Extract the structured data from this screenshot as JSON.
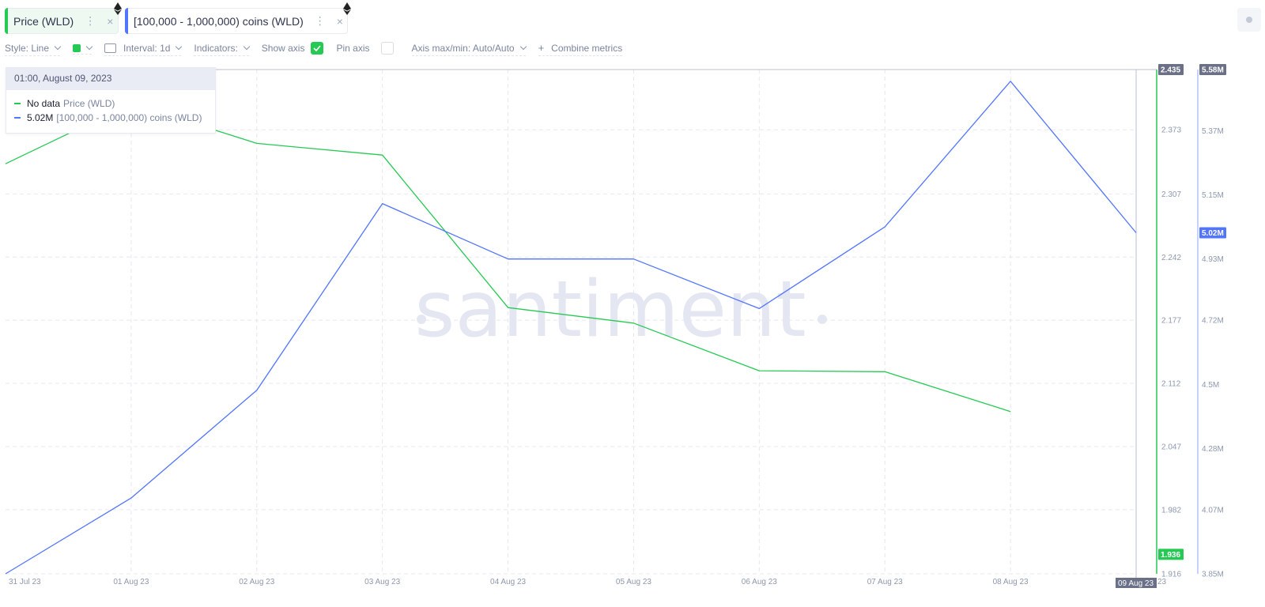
{
  "chips": [
    {
      "label": "Price (WLD)",
      "color": "#26c953"
    },
    {
      "label": "[100,000 - 1,000,000) coins (WLD)",
      "color": "#5275ff"
    }
  ],
  "chip_menu_glyph": "⋮",
  "chip_close_glyph": "×",
  "settings": {
    "style": "Style: Line",
    "interval": "Interval: 1d",
    "indicators": "Indicators:",
    "show_axis": "Show axis",
    "pin_axis": "Pin axis",
    "axis_maxmin": "Axis max/min: Auto/Auto",
    "combine": "Combine metrics",
    "combine_plus": "+"
  },
  "tooltip": {
    "date": "01:00, August 09, 2023",
    "rows": [
      {
        "value": "No data",
        "name": "Price (WLD)",
        "color": "#26c953"
      },
      {
        "value": "5.02M",
        "name": "[100,000  - 1,000,000) coins (WLD)",
        "color": "#5275ff"
      }
    ]
  },
  "watermark": "santiment",
  "chart_data": {
    "type": "line",
    "categories": [
      "31 Jul 23",
      "01 Aug 23",
      "02 Aug 23",
      "03 Aug 23",
      "04 Aug 23",
      "05 Aug 23",
      "06 Aug 23",
      "07 Aug 23",
      "08 Aug 23",
      "09 Aug 23"
    ],
    "series": [
      {
        "name": "Price (WLD)",
        "color": "#26c953",
        "axis": "left",
        "values": [
          2.338,
          2.4,
          2.359,
          2.347,
          2.19,
          2.174,
          2.125,
          2.124,
          2.083,
          null
        ]
      },
      {
        "name": "[100,000 - 1,000,000) coins (WLD)",
        "color": "#5275ff",
        "axis": "right",
        "values": [
          3.85,
          4.11,
          4.48,
          5.12,
          4.93,
          4.93,
          4.76,
          5.04,
          5.54,
          5.02
        ]
      }
    ],
    "price_axis": {
      "min": 1.916,
      "max": 2.435,
      "ticks": [
        "2.373",
        "2.307",
        "2.242",
        "2.177",
        "2.112",
        "2.047",
        "1.982",
        "1.916"
      ],
      "badge_top": "2.435",
      "badge_current": "1.936",
      "color": "#26c953"
    },
    "coins_axis": {
      "min": 3.85,
      "max": 5.58,
      "ticks": [
        "5.37M",
        "5.15M",
        "4.93M",
        "4.72M",
        "4.5M",
        "4.28M",
        "4.07M",
        "3.85M"
      ],
      "badge_top": "5.58M",
      "badge_current": "5.02M",
      "color": "#5275ff"
    },
    "hover_date": "09 Aug 23",
    "hover_suffix": "23"
  }
}
